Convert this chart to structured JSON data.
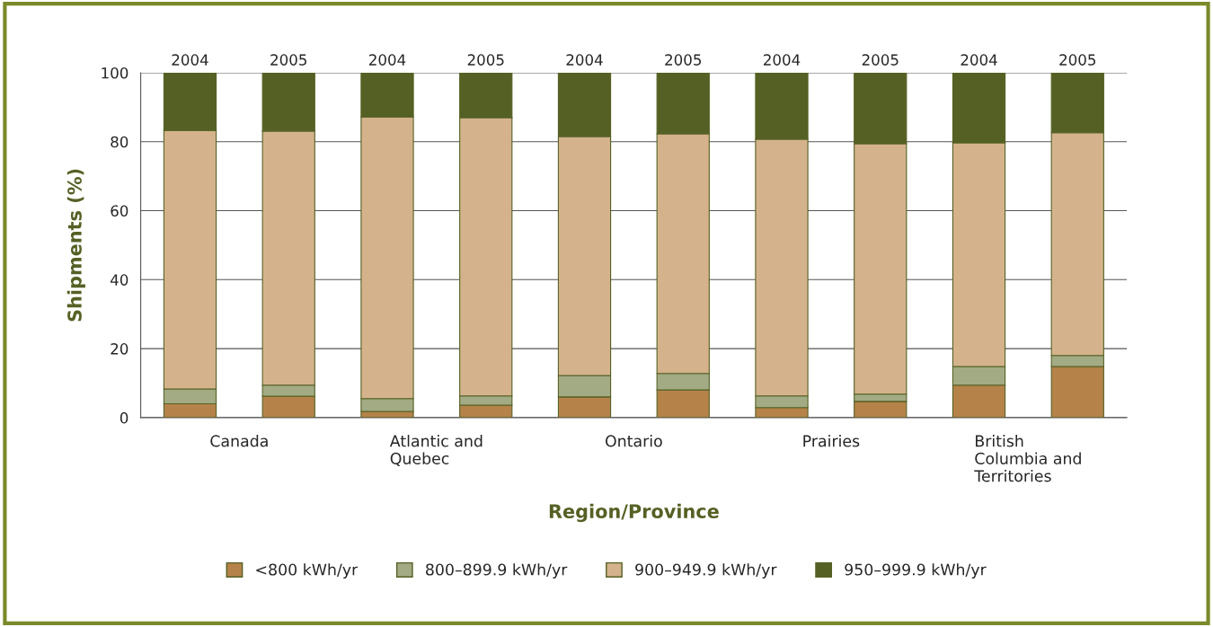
{
  "chart_data": {
    "type": "bar",
    "stacked": true,
    "xlabel": "Region/Province",
    "ylabel": "Shipments (%)",
    "categories": [
      "2004",
      "2005",
      "2004",
      "2005",
      "2004",
      "2005",
      "2004",
      "2005",
      "2004",
      "2005"
    ],
    "series": [
      {
        "name": "<800 kWh/yr",
        "color": "#b5834a",
        "values": [
          4,
          6.2,
          1.8,
          3.6,
          6,
          8,
          2.9,
          4.7,
          9.4,
          14.8
        ]
      },
      {
        "name": "800–899.9 kWh/yr",
        "color": "#a3ab84",
        "values": [
          4.3,
          3.2,
          3.7,
          2.7,
          6.2,
          4.8,
          3.4,
          2.1,
          5.4,
          3.2
        ]
      },
      {
        "name": "900–949.9 kWh/yr",
        "color": "#d4b38c",
        "values": [
          75,
          73.7,
          81.7,
          80.7,
          69.3,
          69.5,
          74.4,
          72.6,
          64.9,
          64.6
        ]
      },
      {
        "name": "950–999.9 kWh/yr",
        "color": "#556124",
        "values": [
          16.7,
          16.9,
          12.8,
          13,
          18.5,
          17.7,
          19.3,
          20.6,
          20.3,
          17.4
        ]
      }
    ],
    "annotations": [
      "Canada",
      "Atlantic and\nQuebec",
      "Ontario",
      "Prairies",
      "British\nColumbia and\nTerritories"
    ],
    "ylim": [
      0,
      100
    ],
    "yticks": [
      0,
      20,
      40,
      60,
      80,
      100
    ],
    "grid": "y",
    "legend": "bottom"
  }
}
